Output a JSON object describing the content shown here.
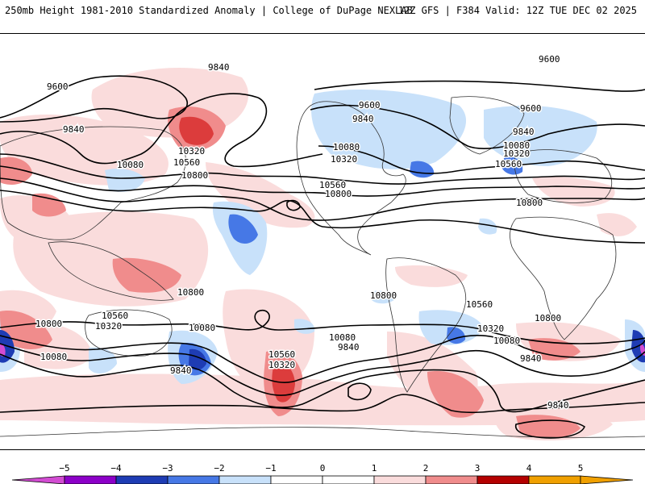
{
  "header": {
    "left": "250mb Height 1981-2010 Standardized Anomaly | College of DuPage NEXLAB",
    "right": "12Z GFS | F384 Valid: 12Z TUE DEC 02 2025"
  },
  "colors": {
    "neg5": "#d24cd2",
    "neg4": "#8c00c8",
    "neg3": "#1e3cb4",
    "neg2": "#4678e6",
    "neg1": "#c8e1fa",
    "zero": "#ffffff",
    "pos1": "#fadcdc",
    "pos2": "#f08c8c",
    "pos3": "#dc3c3c",
    "pos4": "#b40000",
    "pos5": "#f0a000",
    "land_outline": "#333333",
    "contour": "#000000"
  },
  "colorbar": {
    "ticks": [
      "−5",
      "−4",
      "−3",
      "−2",
      "−1",
      "0",
      "1",
      "2",
      "3",
      "4",
      "5"
    ]
  },
  "contour_labels": {
    "c9840_nw": "9840",
    "c9600_nw": "9600",
    "c9840_w": "9840",
    "c9600_ne": "9600",
    "c9600_can": "9600",
    "c9840_can": "9840",
    "c10080_us": "10080",
    "c10320_us": "10320",
    "c10320_pac": "10320",
    "c10080_pac": "10080",
    "c10560_pac": "10560",
    "c10800_pac": "10800",
    "c10560_atl": "10560",
    "c10800_atl": "10800",
    "c9600_eu": "9600",
    "c9840_eu": "9840",
    "c10080_eu": "10080",
    "c10320_eu": "10320",
    "c10560_eu": "10560",
    "c10800_af": "10800",
    "c10800_sw": "10800",
    "c10560_sw": "10560",
    "c10320_sw": "10320",
    "c10080_sw": "10080",
    "c10800_s": "10800",
    "c10080_sp": "10080",
    "c10560_sp": "10560",
    "c10320_sp": "10320",
    "c9840_s": "9840",
    "c10800_sa": "10800",
    "c10080_sa": "10080",
    "c9840_sa": "9840",
    "c10560_sa": "10560",
    "c10320_sa": "10320",
    "c10080_sa2": "10080",
    "c9840_sa2": "9840",
    "c10800_io": "10800",
    "c9840_ant": "9840"
  }
}
